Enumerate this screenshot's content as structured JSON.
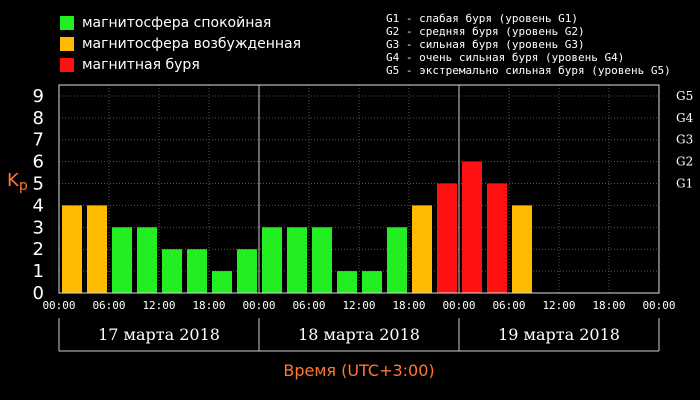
{
  "legend": [
    {
      "label": "магнитосфера спокойная",
      "color": "#22ee22"
    },
    {
      "label": "магнитосфера возбужденная",
      "color": "#ffbb00"
    },
    {
      "label": "магнитная буря",
      "color": "#ff1111"
    }
  ],
  "g_levels": [
    "G1 - слабая буря (уровень G1)",
    "G2 - средняя буря (уровень G2)",
    "G3 - сильная буря (уровень G3)",
    "G4 - очень сильная буря (уровень G4)",
    "G5 - экстремально сильная буря (уровень G5)"
  ],
  "chart_data": {
    "type": "bar",
    "ylabel": "Kp",
    "xlabel": "Время (UTC+3:00)",
    "ylim": [
      0,
      9.5
    ],
    "y_ticks": [
      "0",
      "1",
      "2",
      "3",
      "4",
      "5",
      "6",
      "7",
      "8",
      "9"
    ],
    "g_ticks": [
      {
        "label": "G1",
        "value": 5
      },
      {
        "label": "G2",
        "value": 6
      },
      {
        "label": "G3",
        "value": 7
      },
      {
        "label": "G4",
        "value": 8
      },
      {
        "label": "G5",
        "value": 9
      }
    ],
    "x_tick_labels": [
      "00:00",
      "06:00",
      "12:00",
      "18:00",
      "00:00",
      "06:00",
      "12:00",
      "18:00",
      "00:00",
      "06:00",
      "12:00",
      "18:00",
      "00:00"
    ],
    "days": [
      "17 марта 2018",
      "18 марта 2018",
      "19 марта 2018"
    ],
    "values": [
      4,
      4,
      3,
      3,
      2,
      2,
      1,
      2,
      3,
      3,
      3,
      1,
      1,
      3,
      4,
      5,
      6,
      5,
      4
    ],
    "colors": {
      "quiet": "#22ee22",
      "active": "#ffbb00",
      "storm": "#ff1111",
      "axis_label": "#ff7733",
      "grid": "#555555",
      "day_divider": "#cccccc"
    },
    "grid": true
  }
}
